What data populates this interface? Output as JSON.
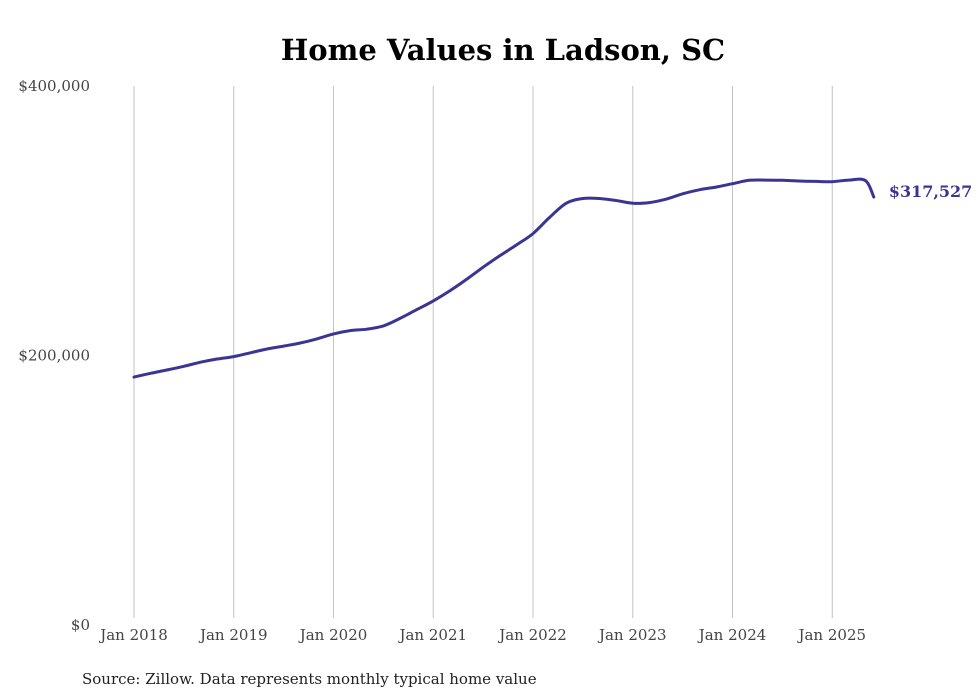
{
  "chart_data": {
    "type": "line",
    "title": "Home Values in Ladson, SC",
    "xlabel": "",
    "ylabel": "",
    "x_start": "2018-01",
    "x_end": "2025-06",
    "xlim": [
      "2018-01",
      "2025-06"
    ],
    "ylim": [
      0,
      400000
    ],
    "x_tick_labels": [
      "Jan 2018",
      "Jan 2019",
      "Jan 2020",
      "Jan 2021",
      "Jan 2022",
      "Jan 2023",
      "Jan 2024",
      "Jan 2025"
    ],
    "y_tick_labels": [
      "$0",
      "$200,000",
      "$400,000"
    ],
    "y_ticks": [
      0,
      200000,
      400000
    ],
    "grid": "vertical",
    "series": [
      {
        "color": "#3a3594",
        "x": [
          "2018-01",
          "2018-03",
          "2018-05",
          "2018-07",
          "2018-09",
          "2018-11",
          "2019-01",
          "2019-03",
          "2019-05",
          "2019-07",
          "2019-09",
          "2019-11",
          "2020-01",
          "2020-03",
          "2020-05",
          "2020-07",
          "2020-09",
          "2020-11",
          "2021-01",
          "2021-03",
          "2021-05",
          "2021-07",
          "2021-09",
          "2021-11",
          "2022-01",
          "2022-03",
          "2022-05",
          "2022-07",
          "2022-09",
          "2022-11",
          "2023-01",
          "2023-03",
          "2023-05",
          "2023-07",
          "2023-09",
          "2023-11",
          "2024-01",
          "2024-03",
          "2024-05",
          "2024-07",
          "2024-09",
          "2024-11",
          "2025-01",
          "2025-03",
          "2025-05",
          "2025-06"
        ],
        "values": [
          184000,
          186800,
          189300,
          192000,
          195000,
          197400,
          199200,
          202000,
          204800,
          207000,
          209300,
          212300,
          216000,
          218500,
          219500,
          222000,
          227500,
          234000,
          240500,
          248000,
          256500,
          265500,
          274000,
          282000,
          290500,
          302500,
          313000,
          316500,
          316500,
          315000,
          313000,
          313500,
          316000,
          320000,
          323000,
          325000,
          327500,
          330000,
          330200,
          330000,
          329500,
          329200,
          329000,
          330200,
          329800,
          317527
        ]
      }
    ],
    "end_label": "$317,527",
    "source": "Source: Zillow. Data represents monthly typical home value"
  }
}
